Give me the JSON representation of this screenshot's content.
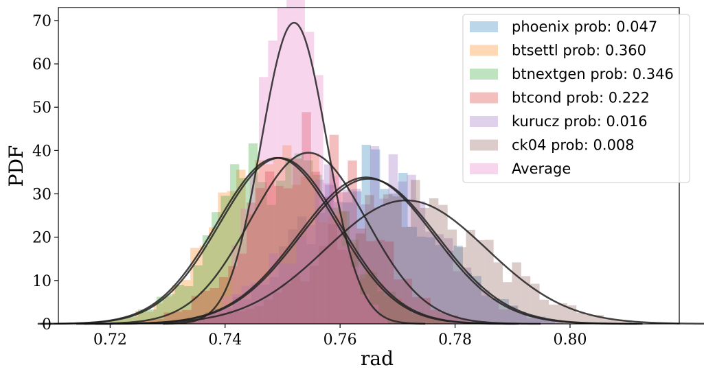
{
  "chart_data": {
    "type": "histogram",
    "xlabel": "rad",
    "ylabel": "PDF",
    "xlim": [
      0.711,
      0.819
    ],
    "ylim": [
      0,
      73
    ],
    "xticks": [
      "0.72",
      "0.74",
      "0.76",
      "0.78",
      "0.80"
    ],
    "yticks": [
      "0",
      "10",
      "20",
      "30",
      "40",
      "50",
      "60",
      "70"
    ],
    "grid": false,
    "legend_position": "top-right",
    "series": [
      {
        "name": "phoenix prob: 0.047",
        "color": "#1f77b4",
        "kind": "histogram",
        "gauss": {
          "mu": 0.765,
          "sigma": 0.0119,
          "peak": 33.5
        }
      },
      {
        "name": "btsettl prob: 0.360",
        "color": "#ff7f0e",
        "kind": "histogram",
        "gauss": {
          "mu": 0.749,
          "sigma": 0.0104,
          "peak": 38.3
        }
      },
      {
        "name": "btnextgen prob: 0.346",
        "color": "#2ca02c",
        "kind": "histogram",
        "gauss": {
          "mu": 0.7495,
          "sigma": 0.0104,
          "peak": 38.3
        }
      },
      {
        "name": "btcond prob: 0.222",
        "color": "#d62728",
        "kind": "histogram",
        "gauss": {
          "mu": 0.7545,
          "sigma": 0.0101,
          "peak": 39.5
        }
      },
      {
        "name": "kurucz prob: 0.016",
        "color": "#9467bd",
        "kind": "histogram",
        "gauss": {
          "mu": 0.7645,
          "sigma": 0.0118,
          "peak": 33.8
        }
      },
      {
        "name": "ck04 prob: 0.008",
        "color": "#8c564b",
        "kind": "histogram",
        "gauss": {
          "mu": 0.7715,
          "sigma": 0.014,
          "peak": 28.5
        }
      },
      {
        "name": "Average",
        "color": "#e377c2",
        "kind": "histogram",
        "gauss": {
          "mu": 0.752,
          "sigma": 0.0057,
          "peak": 69.5
        }
      }
    ]
  }
}
